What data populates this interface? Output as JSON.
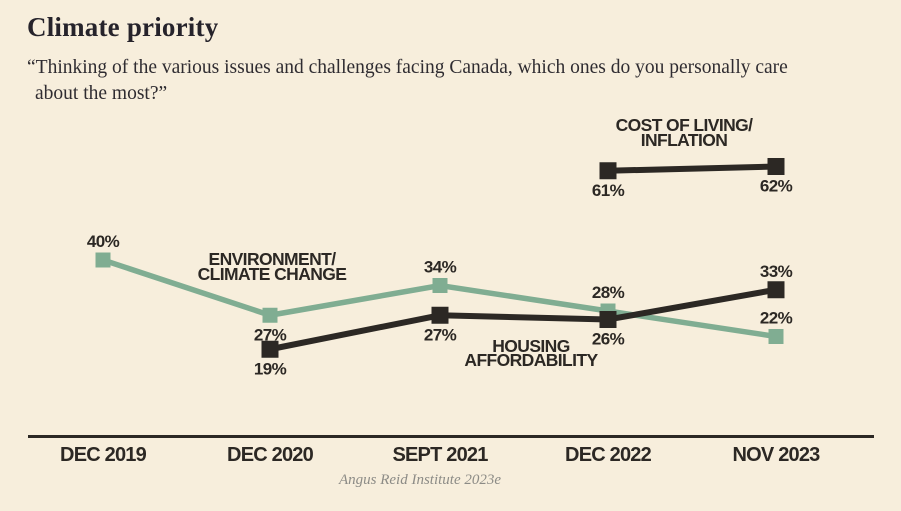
{
  "header": {
    "title": "Climate priority",
    "subtitle_lines": [
      "“Thinking of the various issues and challenges facing Canada, which ones do you personally care",
      "about the most?”"
    ]
  },
  "chart_data": {
    "type": "line",
    "title": "Climate priority",
    "xlabel": "",
    "ylabel": "",
    "unit": "%",
    "ylim": [
      0,
      70
    ],
    "grid": false,
    "legend": "inline-annotations",
    "categories": [
      "DEC 2019",
      "DEC 2020",
      "SEPT 2021",
      "DEC 2022",
      "NOV 2023"
    ],
    "series": [
      {
        "name": "ENVIRONMENT/CLIMATE CHANGE",
        "label_lines": [
          "ENVIRONMENT/",
          "CLIMATE CHANGE"
        ],
        "color": "#80ad92",
        "values": [
          40,
          27,
          34,
          28,
          22
        ],
        "value_labels": [
          "40%",
          "27%",
          "34%",
          "28%",
          "22%"
        ],
        "label_placement": [
          "above",
          "below",
          "above",
          "above",
          "above"
        ]
      },
      {
        "name": "HOUSING AFFORDABILITY",
        "label_lines": [
          "HOUSING",
          "AFFORDABILITY"
        ],
        "color": "#2c2824",
        "values": [
          null,
          19,
          27,
          26,
          33
        ],
        "value_labels": [
          null,
          "19%",
          "27%",
          "26%",
          "33%"
        ],
        "label_placement": [
          null,
          "below",
          "below",
          "below",
          "above"
        ]
      },
      {
        "name": "COST OF LIVING/INFLATION",
        "label_lines": [
          "COST OF LIVING/",
          "INFLATION"
        ],
        "color": "#2c2824",
        "values": [
          null,
          null,
          null,
          61,
          62
        ],
        "value_labels": [
          null,
          null,
          null,
          "61%",
          "62%"
        ],
        "label_placement": [
          null,
          null,
          null,
          "below",
          "below"
        ]
      }
    ]
  },
  "footer": {
    "source": "Angus Reid Institute 2023e"
  },
  "colors": {
    "background": "#f7eedc",
    "ink": "#2c2824",
    "green": "#80ad92",
    "credit": "#8c8b86"
  }
}
